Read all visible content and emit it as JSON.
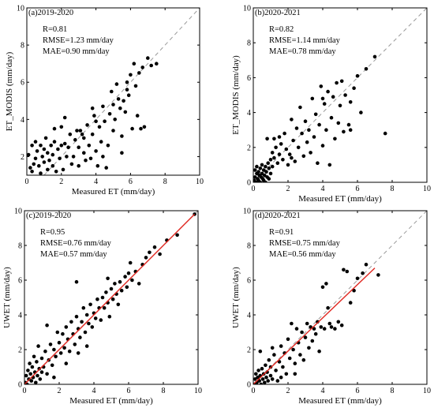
{
  "chart_data": [
    {
      "id": "a",
      "type": "scatter",
      "panel_label": "(a)2019-2020",
      "stats": [
        "R=0.81",
        "RMSE=1.23 mm/day",
        "MAE=0.90 mm/day"
      ],
      "xlabel": "Measured ET (mm/day)",
      "ylabel": "ET_MODIS (mm/day)",
      "xlim": [
        0,
        10
      ],
      "ylim": [
        1,
        10
      ],
      "xticks": [
        0,
        2,
        4,
        6,
        8,
        10
      ],
      "yticks": [
        2,
        4,
        6,
        8,
        10
      ],
      "reference_line": "1:1 dashed",
      "fit_line": null,
      "points": [
        [
          0.1,
          2.1
        ],
        [
          0.2,
          1.4
        ],
        [
          0.3,
          1.2
        ],
        [
          0.4,
          1.6
        ],
        [
          0.5,
          2.8
        ],
        [
          0.5,
          1.9
        ],
        [
          0.6,
          2.3
        ],
        [
          0.7,
          1.5
        ],
        [
          0.8,
          2.6
        ],
        [
          0.8,
          1.1
        ],
        [
          0.9,
          2.0
        ],
        [
          1.0,
          2.4
        ],
        [
          1.0,
          1.7
        ],
        [
          1.1,
          3.0
        ],
        [
          1.2,
          2.2
        ],
        [
          1.2,
          1.3
        ],
        [
          1.3,
          1.8
        ],
        [
          1.4,
          2.6
        ],
        [
          1.5,
          2.1
        ],
        [
          1.5,
          1.5
        ],
        [
          1.6,
          2.8
        ],
        [
          1.7,
          1.2
        ],
        [
          1.8,
          2.4
        ],
        [
          1.9,
          1.9
        ],
        [
          2.0,
          3.6
        ],
        [
          2.0,
          2.6
        ],
        [
          2.1,
          1.3
        ],
        [
          2.2,
          2.7
        ],
        [
          2.3,
          2.0
        ],
        [
          2.4,
          2.5
        ],
        [
          2.5,
          3.2
        ],
        [
          2.6,
          1.6
        ],
        [
          2.7,
          2.0
        ],
        [
          2.8,
          2.9
        ],
        [
          3.0,
          2.5
        ],
        [
          3.0,
          1.5
        ],
        [
          3.1,
          3.4
        ],
        [
          3.2,
          3.2
        ],
        [
          3.3,
          3.0
        ],
        [
          3.3,
          2.2
        ],
        [
          3.4,
          1.8
        ],
        [
          3.5,
          3.7
        ],
        [
          3.6,
          2.6
        ],
        [
          3.7,
          1.9
        ],
        [
          3.8,
          3.2
        ],
        [
          3.9,
          4.2
        ],
        [
          4.0,
          2.3
        ],
        [
          4.1,
          1.5
        ],
        [
          4.2,
          3.6
        ],
        [
          4.3,
          2.8
        ],
        [
          4.4,
          2.0
        ],
        [
          4.4,
          4.7
        ],
        [
          4.5,
          3.9
        ],
        [
          4.6,
          1.4
        ],
        [
          4.7,
          2.6
        ],
        [
          4.8,
          4.3
        ],
        [
          4.9,
          5.5
        ],
        [
          5.0,
          3.4
        ],
        [
          5.0,
          4.8
        ],
        [
          5.1,
          4.0
        ],
        [
          5.2,
          5.9
        ],
        [
          5.3,
          5.1
        ],
        [
          5.4,
          4.6
        ],
        [
          5.5,
          3.1
        ],
        [
          5.5,
          2.2
        ],
        [
          5.6,
          5.0
        ],
        [
          5.7,
          4.4
        ],
        [
          5.8,
          6.0
        ],
        [
          5.9,
          5.3
        ],
        [
          6.0,
          6.4
        ],
        [
          6.1,
          3.5
        ],
        [
          6.2,
          7.0
        ],
        [
          6.3,
          5.8
        ],
        [
          6.4,
          4.2
        ],
        [
          6.5,
          6.5
        ],
        [
          6.6,
          3.5
        ],
        [
          6.7,
          6.8
        ],
        [
          6.8,
          3.6
        ],
        [
          7.0,
          7.3
        ],
        [
          7.2,
          6.9
        ],
        [
          7.5,
          7.0
        ],
        [
          0.3,
          2.6
        ],
        [
          1.6,
          3.5
        ],
        [
          2.9,
          3.4
        ],
        [
          3.8,
          4.6
        ],
        [
          5.8,
          5.6
        ],
        [
          4.0,
          3.9
        ],
        [
          2.2,
          4.1
        ]
      ]
    },
    {
      "id": "b",
      "type": "scatter",
      "panel_label": "(b)2020-2021",
      "stats": [
        "R=0.82",
        "RMSE=1.14 mm/day",
        "MAE=0.78 mm/day"
      ],
      "xlabel": "Measured ET (mm/day)",
      "ylabel": "ET_MODIS (mm/day)",
      "xlim": [
        0,
        10
      ],
      "ylim": [
        0,
        10
      ],
      "xticks": [
        0,
        2,
        4,
        6,
        8,
        10
      ],
      "yticks": [
        0,
        2,
        4,
        6,
        8,
        10
      ],
      "reference_line": "1:1 dashed",
      "fit_line": null,
      "points": [
        [
          0.05,
          0.1
        ],
        [
          0.1,
          0.3
        ],
        [
          0.1,
          0.7
        ],
        [
          0.15,
          0.0
        ],
        [
          0.2,
          0.5
        ],
        [
          0.2,
          0.9
        ],
        [
          0.25,
          0.2
        ],
        [
          0.3,
          0.6
        ],
        [
          0.3,
          0.1
        ],
        [
          0.35,
          0.4
        ],
        [
          0.4,
          0.8
        ],
        [
          0.4,
          0.0
        ],
        [
          0.45,
          0.3
        ],
        [
          0.5,
          1.0
        ],
        [
          0.5,
          0.5
        ],
        [
          0.55,
          0.2
        ],
        [
          0.6,
          0.7
        ],
        [
          0.6,
          0.1
        ],
        [
          0.65,
          0.4
        ],
        [
          0.7,
          0.9
        ],
        [
          0.7,
          0.0
        ],
        [
          0.75,
          0.6
        ],
        [
          0.8,
          0.3
        ],
        [
          0.85,
          1.1
        ],
        [
          0.9,
          0.8
        ],
        [
          0.9,
          0.2
        ],
        [
          1.0,
          1.3
        ],
        [
          1.0,
          0.5
        ],
        [
          1.1,
          1.7
        ],
        [
          1.1,
          0.9
        ],
        [
          1.2,
          2.5
        ],
        [
          1.2,
          1.4
        ],
        [
          1.3,
          2.0
        ],
        [
          1.4,
          1.1
        ],
        [
          1.5,
          1.6
        ],
        [
          1.6,
          2.2
        ],
        [
          1.7,
          1.3
        ],
        [
          1.8,
          2.8
        ],
        [
          1.9,
          1.9
        ],
        [
          2.0,
          1.0
        ],
        [
          2.1,
          1.6
        ],
        [
          2.2,
          3.6
        ],
        [
          2.3,
          2.4
        ],
        [
          2.4,
          1.2
        ],
        [
          2.5,
          3.1
        ],
        [
          2.6,
          2.0
        ],
        [
          2.7,
          4.3
        ],
        [
          2.8,
          2.8
        ],
        [
          2.9,
          1.5
        ],
        [
          3.0,
          3.5
        ],
        [
          3.1,
          2.3
        ],
        [
          3.2,
          3.0
        ],
        [
          3.3,
          1.7
        ],
        [
          3.4,
          4.8
        ],
        [
          3.5,
          2.6
        ],
        [
          3.6,
          3.9
        ],
        [
          3.7,
          1.1
        ],
        [
          3.8,
          3.3
        ],
        [
          3.9,
          5.5
        ],
        [
          4.0,
          2.1
        ],
        [
          4.1,
          4.5
        ],
        [
          4.2,
          3.0
        ],
        [
          4.3,
          5.2
        ],
        [
          4.4,
          1.0
        ],
        [
          4.5,
          3.7
        ],
        [
          4.6,
          4.9
        ],
        [
          4.7,
          2.5
        ],
        [
          4.8,
          5.7
        ],
        [
          4.9,
          3.4
        ],
        [
          5.0,
          4.4
        ],
        [
          5.1,
          5.8
        ],
        [
          5.2,
          2.9
        ],
        [
          5.3,
          5.0
        ],
        [
          5.5,
          3.3
        ],
        [
          5.6,
          4.6
        ],
        [
          5.8,
          5.4
        ],
        [
          6.0,
          6.1
        ],
        [
          6.2,
          4.0
        ],
        [
          6.5,
          6.5
        ],
        [
          7.0,
          7.2
        ],
        [
          7.6,
          2.8
        ],
        [
          0.8,
          2.5
        ],
        [
          1.5,
          2.6
        ],
        [
          2.2,
          1.4
        ],
        [
          4.0,
          4.8
        ],
        [
          5.6,
          3.0
        ]
      ]
    },
    {
      "id": "c",
      "type": "scatter",
      "panel_label": "(c)2019-2020",
      "stats": [
        "R=0.95",
        "RMSE=0.76 mm/day",
        "MAE=0.57 mm/day"
      ],
      "xlabel": "Measured ET (mm/day)",
      "ylabel": "UWET (mm/day)",
      "xlim": [
        0,
        10
      ],
      "ylim": [
        0,
        10
      ],
      "xticks": [
        0,
        2,
        4,
        6,
        8,
        10
      ],
      "yticks": [
        0,
        2,
        4,
        6,
        8,
        10
      ],
      "reference_line": "1:1 dashed",
      "fit_line": {
        "x": [
          0,
          9.8
        ],
        "y": [
          0,
          9.8
        ],
        "color": "#e0261f"
      },
      "points": [
        [
          0.05,
          0.1
        ],
        [
          0.1,
          0.5
        ],
        [
          0.15,
          0.0
        ],
        [
          0.2,
          0.8
        ],
        [
          0.25,
          0.3
        ],
        [
          0.3,
          1.2
        ],
        [
          0.35,
          0.6
        ],
        [
          0.4,
          0.2
        ],
        [
          0.45,
          1.0
        ],
        [
          0.5,
          0.4
        ],
        [
          0.55,
          1.6
        ],
        [
          0.6,
          0.7
        ],
        [
          0.65,
          0.1
        ],
        [
          0.7,
          1.3
        ],
        [
          0.75,
          0.5
        ],
        [
          0.8,
          2.2
        ],
        [
          0.85,
          0.9
        ],
        [
          0.9,
          0.3
        ],
        [
          1.0,
          1.5
        ],
        [
          1.0,
          0.7
        ],
        [
          1.1,
          1.0
        ],
        [
          1.2,
          1.9
        ],
        [
          1.3,
          0.6
        ],
        [
          1.4,
          1.4
        ],
        [
          1.5,
          2.3
        ],
        [
          1.6,
          1.1
        ],
        [
          1.7,
          2.0
        ],
        [
          1.8,
          1.6
        ],
        [
          1.9,
          3.0
        ],
        [
          2.0,
          2.4
        ],
        [
          2.1,
          1.8
        ],
        [
          2.2,
          2.9
        ],
        [
          2.3,
          2.1
        ],
        [
          2.4,
          3.3
        ],
        [
          2.5,
          2.6
        ],
        [
          2.6,
          1.9
        ],
        [
          2.7,
          3.6
        ],
        [
          2.8,
          2.9
        ],
        [
          2.9,
          2.3
        ],
        [
          3.0,
          3.9
        ],
        [
          3.0,
          5.9
        ],
        [
          3.1,
          3.2
        ],
        [
          3.2,
          2.7
        ],
        [
          3.3,
          3.6
        ],
        [
          3.4,
          4.4
        ],
        [
          3.5,
          3.0
        ],
        [
          3.6,
          4.0
        ],
        [
          3.7,
          3.5
        ],
        [
          3.8,
          4.6
        ],
        [
          3.9,
          3.3
        ],
        [
          4.0,
          4.1
        ],
        [
          4.1,
          3.8
        ],
        [
          4.2,
          4.9
        ],
        [
          4.3,
          4.4
        ],
        [
          4.4,
          3.7
        ],
        [
          4.5,
          5.0
        ],
        [
          4.6,
          4.4
        ],
        [
          4.7,
          5.3
        ],
        [
          4.8,
          4.7
        ],
        [
          4.9,
          3.9
        ],
        [
          5.0,
          5.5
        ],
        [
          5.1,
          4.9
        ],
        [
          5.2,
          5.8
        ],
        [
          5.3,
          5.2
        ],
        [
          5.4,
          4.6
        ],
        [
          5.5,
          5.9
        ],
        [
          5.6,
          5.4
        ],
        [
          5.8,
          6.2
        ],
        [
          5.9,
          5.6
        ],
        [
          6.0,
          6.4
        ],
        [
          6.2,
          6.0
        ],
        [
          6.4,
          6.5
        ],
        [
          6.6,
          5.8
        ],
        [
          6.8,
          6.9
        ],
        [
          7.0,
          7.3
        ],
        [
          7.2,
          7.6
        ],
        [
          7.5,
          7.9
        ],
        [
          7.8,
          7.5
        ],
        [
          8.2,
          8.3
        ],
        [
          8.8,
          8.6
        ],
        [
          9.8,
          9.8
        ],
        [
          1.3,
          3.4
        ],
        [
          2.4,
          1.2
        ],
        [
          3.6,
          2.2
        ],
        [
          4.8,
          6.1
        ],
        [
          6.1,
          7.0
        ],
        [
          3.1,
          1.8
        ],
        [
          1.7,
          0.4
        ]
      ]
    },
    {
      "id": "d",
      "type": "scatter",
      "panel_label": "(d)2020-2021",
      "stats": [
        "R=0.91",
        "RMSE=0.75 mm/day",
        "MAE=0.56 mm/day"
      ],
      "xlabel": "Measured ET (mm/day)",
      "ylabel": "UWET (mm/day)",
      "xlim": [
        0,
        10
      ],
      "ylim": [
        0,
        10
      ],
      "xticks": [
        0,
        2,
        4,
        6,
        8,
        10
      ],
      "yticks": [
        0,
        2,
        4,
        6,
        8,
        10
      ],
      "reference_line": "1:1 dashed",
      "fit_line": {
        "x": [
          0,
          7.0
        ],
        "y": [
          0,
          6.7
        ],
        "color": "#e0261f"
      },
      "points": [
        [
          0.05,
          0.0
        ],
        [
          0.1,
          0.3
        ],
        [
          0.15,
          0.6
        ],
        [
          0.2,
          0.1
        ],
        [
          0.25,
          0.4
        ],
        [
          0.3,
          0.8
        ],
        [
          0.35,
          0.2
        ],
        [
          0.4,
          0.5
        ],
        [
          0.45,
          0.0
        ],
        [
          0.5,
          0.9
        ],
        [
          0.55,
          0.3
        ],
        [
          0.6,
          0.6
        ],
        [
          0.65,
          0.1
        ],
        [
          0.7,
          1.1
        ],
        [
          0.75,
          0.4
        ],
        [
          0.8,
          0.7
        ],
        [
          0.85,
          0.2
        ],
        [
          0.9,
          1.4
        ],
        [
          1.0,
          0.5
        ],
        [
          1.0,
          1.0
        ],
        [
          1.1,
          0.3
        ],
        [
          1.2,
          1.7
        ],
        [
          1.3,
          0.8
        ],
        [
          1.4,
          0.2
        ],
        [
          1.5,
          1.3
        ],
        [
          1.6,
          2.2
        ],
        [
          1.7,
          1.0
        ],
        [
          1.8,
          1.8
        ],
        [
          1.9,
          0.6
        ],
        [
          2.0,
          2.6
        ],
        [
          2.1,
          1.5
        ],
        [
          2.2,
          3.5
        ],
        [
          2.3,
          2.0
        ],
        [
          2.4,
          1.2
        ],
        [
          2.5,
          3.2
        ],
        [
          2.6,
          2.4
        ],
        [
          2.7,
          1.7
        ],
        [
          2.8,
          3.0
        ],
        [
          3.0,
          2.7
        ],
        [
          3.1,
          3.5
        ],
        [
          3.2,
          2.1
        ],
        [
          3.3,
          3.3
        ],
        [
          3.5,
          3.2
        ],
        [
          3.6,
          2.9
        ],
        [
          3.7,
          3.6
        ],
        [
          3.8,
          1.9
        ],
        [
          3.9,
          3.3
        ],
        [
          4.0,
          5.6
        ],
        [
          4.1,
          3.2
        ],
        [
          4.2,
          5.8
        ],
        [
          4.4,
          3.5
        ],
        [
          4.5,
          3.3
        ],
        [
          4.7,
          3.2
        ],
        [
          4.9,
          3.6
        ],
        [
          5.1,
          3.4
        ],
        [
          5.2,
          6.6
        ],
        [
          5.4,
          6.5
        ],
        [
          5.6,
          4.7
        ],
        [
          5.8,
          5.4
        ],
        [
          6.0,
          6.1
        ],
        [
          6.3,
          6.4
        ],
        [
          6.5,
          6.9
        ],
        [
          7.2,
          6.3
        ],
        [
          0.4,
          1.9
        ],
        [
          1.1,
          2.1
        ],
        [
          2.9,
          1.4
        ],
        [
          3.4,
          2.5
        ],
        [
          4.3,
          4.4
        ],
        [
          2.4,
          0.6
        ],
        [
          1.6,
          0.4
        ]
      ]
    }
  ]
}
